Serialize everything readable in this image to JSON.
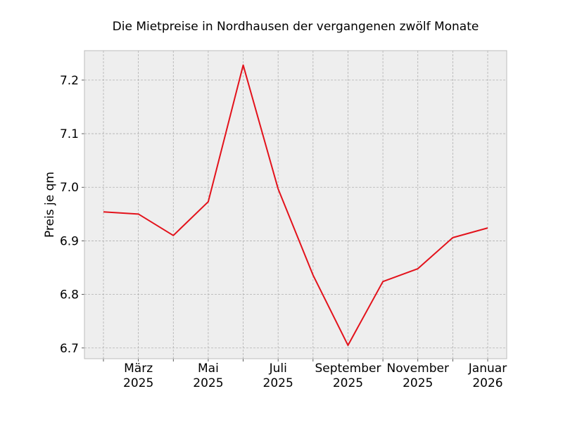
{
  "chart_data": {
    "type": "line",
    "title": "Die Mietpreise in Nordhausen der vergangenen zwölf Monate",
    "xlabel": "",
    "ylabel": "Preis je qm",
    "x": [
      "2025-02",
      "2025-03",
      "2025-04",
      "2025-05",
      "2025-06",
      "2025-07",
      "2025-08",
      "2025-09",
      "2025-10",
      "2025-11",
      "2025-12",
      "2026-01"
    ],
    "series": [
      {
        "values": [
          6.954,
          6.95,
          6.91,
          6.973,
          7.228,
          6.997,
          6.836,
          6.705,
          6.824,
          6.848,
          6.906,
          6.924
        ]
      }
    ],
    "ylim": [
      6.68,
      7.255
    ],
    "yticks": [
      6.7,
      6.8,
      6.9,
      7.0,
      7.1,
      7.2
    ],
    "ytick_labels": [
      "6.7",
      "6.8",
      "6.9",
      "7.0",
      "7.1",
      "7.2"
    ],
    "xticks_labeled": [
      {
        "x": "2025-03",
        "line1": "März",
        "line2": "2025"
      },
      {
        "x": "2025-05",
        "line1": "Mai",
        "line2": "2025"
      },
      {
        "x": "2025-07",
        "line1": "Juli",
        "line2": "2025"
      },
      {
        "x": "2025-09",
        "line1": "September",
        "line2": "2025"
      },
      {
        "x": "2025-11",
        "line1": "November",
        "line2": "2025"
      },
      {
        "x": "2026-01",
        "line1": "Januar",
        "line2": "2026"
      }
    ],
    "xticks_minor": [
      "2025-02",
      "2025-04",
      "2025-06",
      "2025-08",
      "2025-10",
      "2025-12"
    ],
    "grid": true,
    "colors": {
      "line": "#e3121b",
      "background": "#eeeeee",
      "grid": "#b0b0b0",
      "frame": "#bcbcbc"
    }
  }
}
